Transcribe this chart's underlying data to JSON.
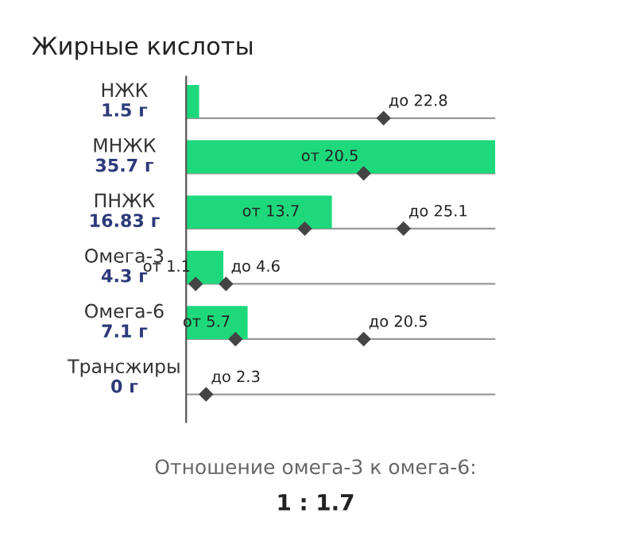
{
  "chart_data": {
    "type": "bar",
    "orientation": "horizontal",
    "title": "Жирные кислоты",
    "categories": [
      "НЖК",
      "МНЖК",
      "ПНЖК",
      "Омега-3",
      "Омега-6",
      "Трансжиры"
    ],
    "grid": "y",
    "series": [
      {
        "color": "#1ed97c",
        "values": [
          1.5,
          35.7,
          16.83,
          4.3,
          7.1,
          0
        ],
        "value_labels": [
          "1.5 г",
          "35.7 г",
          "16.83 г",
          "4.3 г",
          "7.1 г",
          "0 г"
        ]
      },
      {
        "type": "scatter",
        "color": "#444444",
        "marker": "diamond",
        "values": [
          null,
          20.5,
          13.7,
          1.1,
          5.7,
          null
        ],
        "value_labels": [
          null,
          "от 20.5",
          "от 13.7",
          "от 1.1",
          "от 5.7",
          null
        ]
      },
      {
        "type": "scatter",
        "color": "#444444",
        "marker": "diamond",
        "values": [
          22.8,
          null,
          25.1,
          4.6,
          20.5,
          2.3
        ],
        "value_labels": [
          "до 22.8",
          null,
          "до 25.1",
          "до 4.6",
          "до 20.5",
          "до 2.3"
        ]
      }
    ],
    "annotations": [
      "Отношение омега-3 к омега-6:",
      "1 : 1.7"
    ]
  }
}
